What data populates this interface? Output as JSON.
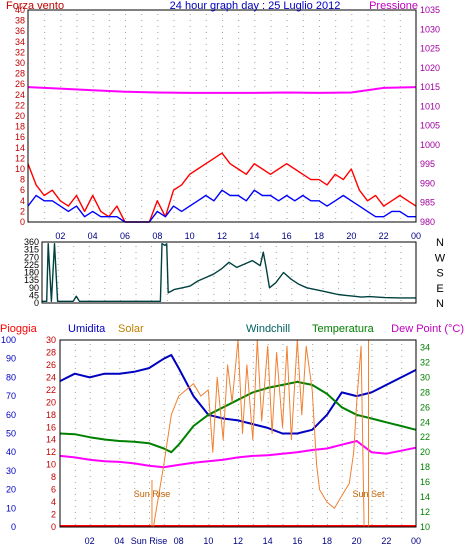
{
  "header": {
    "wind_title": "Forza vento",
    "graph_title": "24 hour graph day : 25 Luglio 2012",
    "pressure_title": "Pressione"
  },
  "colors": {
    "wind_gust": "#ff0000",
    "wind_avg": "#0000ff",
    "pressure": "#ff00ff",
    "direction": "#004040",
    "humidity": "#0000c0",
    "temperature": "#008000",
    "dew_point": "#ff00ff",
    "solar": "#f08030",
    "rain": "#ff0000",
    "axis_left": "#c00000",
    "axis_right": "#a000a0",
    "axis_blue": "#0000c0",
    "axis_green": "#008000",
    "grid": "#a0a0a0"
  },
  "x_axis": {
    "hour_labels": [
      "02",
      "04",
      "06",
      "08",
      "10",
      "12",
      "14",
      "16",
      "18",
      "20",
      "22",
      "00"
    ],
    "bottom_labels": [
      "02",
      "04",
      "Sun Rise",
      "08",
      "10",
      "12",
      "14",
      "16",
      "18",
      "20",
      "22",
      "00"
    ]
  },
  "chart_data": [
    {
      "id": "wind-pressure",
      "type": "line",
      "x_range": [
        0,
        24
      ],
      "left_axis": {
        "title": "Forza vento",
        "range": [
          0,
          40
        ],
        "ticks": [
          0,
          2,
          4,
          6,
          8,
          10,
          12,
          14,
          16,
          18,
          20,
          22,
          24,
          26,
          28,
          30,
          32,
          34,
          36,
          38,
          40
        ]
      },
      "right_axis": {
        "title": "Pressione",
        "range": [
          980,
          1035
        ],
        "ticks": [
          980,
          985,
          990,
          995,
          1000,
          1005,
          1010,
          1015,
          1020,
          1025,
          1030,
          1035
        ]
      },
      "series": [
        {
          "axis": "right",
          "color": "#ff00ff",
          "x": [
            0,
            2,
            4,
            6,
            8,
            10,
            12,
            14,
            16,
            18,
            20,
            22,
            24
          ],
          "y": [
            1015,
            1014.6,
            1014.2,
            1013.8,
            1013.6,
            1013.5,
            1013.5,
            1013.5,
            1013.6,
            1013.5,
            1013.6,
            1014.8,
            1015
          ]
        },
        {
          "axis": "left",
          "color": "#ff0000",
          "x": [
            0,
            0.5,
            1,
            1.5,
            2,
            2.5,
            3,
            3.5,
            4,
            4.5,
            5,
            5.5,
            6,
            6.5,
            7,
            7.5,
            8,
            8.5,
            9,
            9.5,
            10,
            10.5,
            11,
            11.5,
            12,
            12.5,
            13,
            13.5,
            14,
            14.5,
            15,
            15.5,
            16,
            16.5,
            17,
            17.5,
            18,
            18.5,
            19,
            19.5,
            20,
            20.5,
            21,
            21.5,
            22,
            22.5,
            23,
            23.5,
            24
          ],
          "y": [
            11,
            7,
            5,
            6,
            4,
            3,
            5,
            2,
            5,
            2,
            1,
            3,
            0,
            0,
            0,
            0,
            4,
            1,
            6,
            7,
            9,
            10,
            11,
            12,
            13,
            11,
            10,
            9,
            11,
            10,
            9,
            10,
            11,
            10,
            9,
            8,
            8,
            7,
            9,
            8,
            10,
            6,
            4,
            5,
            3,
            4,
            5,
            4,
            3
          ]
        },
        {
          "axis": "left",
          "color": "#0000ff",
          "x": [
            0,
            0.5,
            1,
            1.5,
            2,
            2.5,
            3,
            3.5,
            4,
            4.5,
            5,
            5.5,
            6,
            6.5,
            7,
            7.5,
            8,
            8.5,
            9,
            9.5,
            10,
            10.5,
            11,
            11.5,
            12,
            12.5,
            13,
            13.5,
            14,
            14.5,
            15,
            15.5,
            16,
            16.5,
            17,
            17.5,
            18,
            18.5,
            19,
            19.5,
            20,
            20.5,
            21,
            21.5,
            22,
            22.5,
            23,
            23.5,
            24
          ],
          "y": [
            3,
            5,
            4,
            4,
            3,
            2,
            3,
            1,
            2,
            1,
            1,
            1,
            0,
            0,
            0,
            0,
            2,
            1,
            3,
            2,
            3,
            4,
            5,
            4,
            6,
            5,
            5,
            4,
            6,
            5,
            5,
            4,
            5,
            4,
            5,
            4,
            4,
            3,
            4,
            5,
            4,
            3,
            2,
            1,
            1,
            2,
            2,
            1,
            1
          ]
        }
      ]
    },
    {
      "id": "wind-direction",
      "type": "line",
      "x_range": [
        0,
        24
      ],
      "left_axis": {
        "range": [
          0,
          360
        ],
        "ticks": [
          0,
          45,
          90,
          135,
          180,
          225,
          270,
          315,
          360
        ]
      },
      "right_axis": {
        "labels": [
          "N",
          "W",
          "S",
          "E",
          "N"
        ]
      },
      "series": [
        {
          "axis": "left",
          "color": "#004040",
          "x": [
            0,
            0.3,
            0.4,
            0.6,
            0.8,
            1,
            1.5,
            2,
            2.2,
            2.4,
            3,
            4,
            5,
            6,
            7,
            7.6,
            7.7,
            7.9,
            8,
            8.1,
            8.3,
            8.5,
            9,
            9.5,
            10,
            10.5,
            11,
            11.5,
            12,
            12.5,
            13,
            13.5,
            14,
            14.2,
            14.4,
            14.6,
            15,
            15.5,
            16,
            16.5,
            17,
            17.5,
            18,
            18.5,
            19,
            19.5,
            20,
            20.5,
            21,
            21.5,
            22,
            23,
            24
          ],
          "y": [
            10,
            10,
            350,
            10,
            350,
            10,
            10,
            10,
            40,
            10,
            10,
            10,
            10,
            10,
            10,
            10,
            350,
            340,
            350,
            60,
            70,
            80,
            90,
            100,
            130,
            150,
            170,
            200,
            240,
            210,
            230,
            250,
            220,
            300,
            200,
            90,
            120,
            180,
            140,
            110,
            90,
            80,
            70,
            60,
            50,
            45,
            40,
            35,
            38,
            35,
            32,
            30,
            30
          ]
        }
      ]
    },
    {
      "id": "temp-humidity",
      "type": "line",
      "x_range": [
        0,
        24
      ],
      "legend": [
        "Pioggia",
        "Umidita",
        "Solar",
        "Windchill",
        "Temperatura",
        "Dew Point (°C)"
      ],
      "axes": {
        "humidity": {
          "range": [
            0,
            100
          ],
          "ticks": [
            0,
            10,
            20,
            30,
            40,
            50,
            60,
            70,
            80,
            90,
            100
          ]
        },
        "rain": {
          "range": [
            0,
            30
          ],
          "ticks": [
            0,
            2,
            4,
            6,
            8,
            10,
            12,
            14,
            16,
            18,
            20,
            22,
            24,
            26,
            28,
            30
          ]
        },
        "temperature": {
          "range": [
            10,
            35
          ],
          "ticks": [
            10,
            12,
            14,
            16,
            18,
            20,
            22,
            24,
            26,
            28,
            30,
            32,
            34
          ]
        }
      },
      "annotations": [
        {
          "text": "Sun Rise",
          "x": 6.2
        },
        {
          "text": "Sun Set",
          "x": 20.8
        }
      ],
      "series": [
        {
          "name": "Umidita",
          "axis": "humidity",
          "color": "#0000c0",
          "x": [
            0,
            1,
            2,
            3,
            4,
            5,
            6,
            7,
            7.5,
            8,
            9,
            10,
            11,
            12,
            13,
            14,
            15,
            16,
            17,
            18,
            19,
            20,
            21,
            22,
            23,
            24
          ],
          "y": [
            78,
            82,
            80,
            82,
            82,
            83,
            85,
            90,
            92,
            85,
            70,
            60,
            58,
            57,
            55,
            53,
            50,
            50,
            52,
            60,
            72,
            70,
            72,
            76,
            80,
            84
          ]
        },
        {
          "name": "Temperatura",
          "axis": "temperature",
          "color": "#008000",
          "x": [
            0,
            1,
            2,
            3,
            4,
            5,
            6,
            7,
            7.5,
            8,
            9,
            10,
            11,
            12,
            13,
            14,
            15,
            16,
            17,
            18,
            19,
            20,
            21,
            22,
            23,
            24
          ],
          "y": [
            22.5,
            22.4,
            22,
            21.7,
            21.5,
            21.4,
            21.2,
            20.5,
            20,
            21,
            23.5,
            25,
            26,
            27,
            28,
            28.6,
            29,
            29.4,
            29,
            27.8,
            26,
            25,
            24.5,
            24,
            23.5,
            23
          ]
        },
        {
          "name": "Dew Point",
          "axis": "temperature",
          "color": "#ff00ff",
          "x": [
            0,
            1,
            2,
            3,
            4,
            5,
            6,
            7,
            8,
            9,
            10,
            11,
            12,
            13,
            14,
            15,
            16,
            17,
            18,
            19,
            20,
            21,
            22,
            23,
            24
          ],
          "y": [
            19.5,
            19.3,
            19.0,
            18.8,
            18.7,
            18.5,
            18.2,
            18.0,
            18.3,
            18.6,
            18.8,
            19.0,
            19.3,
            19.5,
            19.6,
            19.8,
            20.0,
            20.3,
            20.5,
            21.0,
            21.5,
            20.0,
            19.8,
            20.2,
            20.6
          ]
        },
        {
          "name": "Solar",
          "axis": "rain",
          "color": "#f08030",
          "x": [
            6.3,
            7,
            7.5,
            8,
            8.5,
            9,
            9.5,
            10,
            10.3,
            10.6,
            11,
            11.3,
            11.6,
            12,
            12.3,
            12.6,
            13,
            13.3,
            13.6,
            14,
            14.3,
            14.6,
            15,
            15.3,
            15.6,
            16,
            16.3,
            16.6,
            17,
            17.3,
            17.5,
            18,
            18.5,
            19,
            19.5,
            19.8,
            20,
            20.3,
            20.5
          ],
          "y": [
            0,
            10,
            18,
            21,
            22,
            23,
            21,
            22,
            12,
            24,
            14,
            26,
            20,
            30,
            15,
            26,
            14,
            30,
            17,
            29,
            15,
            28,
            16,
            29,
            14,
            30,
            18,
            29,
            22,
            10,
            6,
            4,
            3,
            5,
            7,
            12,
            20,
            29,
            0
          ]
        }
      ]
    }
  ]
}
